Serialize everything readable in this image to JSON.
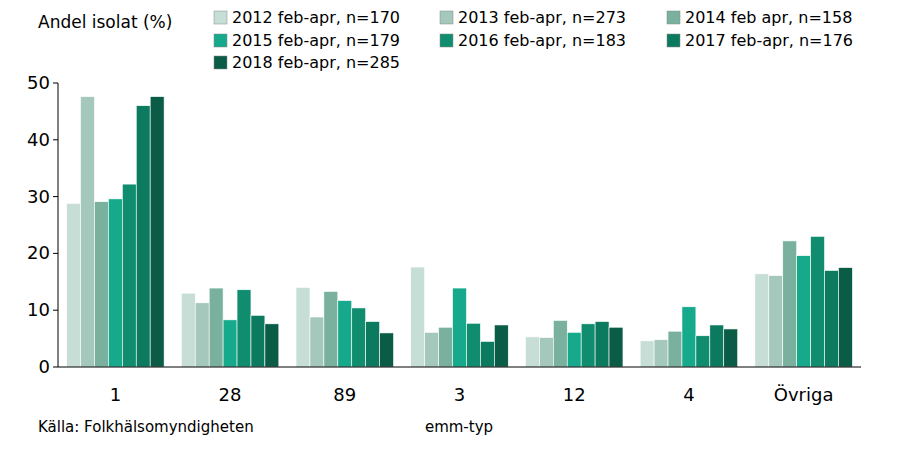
{
  "chart_data": {
    "type": "bar",
    "y_label": "Andel isolat (%)",
    "x_label": "emm-typ",
    "annotations": [
      "Källa: Folkhälsomyndigheten"
    ],
    "categories": [
      "1",
      "28",
      "89",
      "3",
      "12",
      "4",
      "Övriga"
    ],
    "series": [
      {
        "name": "2012 feb-apr, n=170",
        "color": "#c6ded6",
        "values": [
          28.8,
          13.0,
          14.0,
          17.6,
          5.3,
          4.6,
          16.4
        ]
      },
      {
        "name": "2013 feb-apr, n=273",
        "color": "#a5c8bc",
        "values": [
          47.6,
          11.3,
          8.8,
          6.1,
          5.2,
          4.8,
          16.1
        ]
      },
      {
        "name": "2014 feb apr, n=158",
        "color": "#79b19e",
        "values": [
          29.1,
          13.9,
          13.3,
          7.0,
          8.2,
          6.3,
          22.2
        ]
      },
      {
        "name": "2015 feb-apr, n=179",
        "color": "#16a98b",
        "values": [
          29.6,
          8.3,
          11.7,
          13.9,
          6.1,
          10.6,
          19.6
        ]
      },
      {
        "name": "2016 feb-apr, n=183",
        "color": "#0f8d6e",
        "values": [
          32.2,
          13.6,
          10.4,
          7.7,
          7.6,
          5.5,
          23.0
        ]
      },
      {
        "name": "2017 feb-apr, n=176",
        "color": "#0c7a5e",
        "values": [
          46.0,
          9.1,
          8.0,
          4.5,
          8.0,
          7.4,
          17.0
        ]
      },
      {
        "name": "2018 feb-apr, n=285",
        "color": "#0a5c47",
        "values": [
          47.6,
          7.6,
          6.0,
          7.4,
          7.0,
          6.7,
          17.5
        ]
      }
    ],
    "ylim": [
      0,
      50
    ],
    "yticks": [
      0,
      10,
      20,
      30,
      40,
      50
    ],
    "grid": false,
    "legend": "top"
  }
}
